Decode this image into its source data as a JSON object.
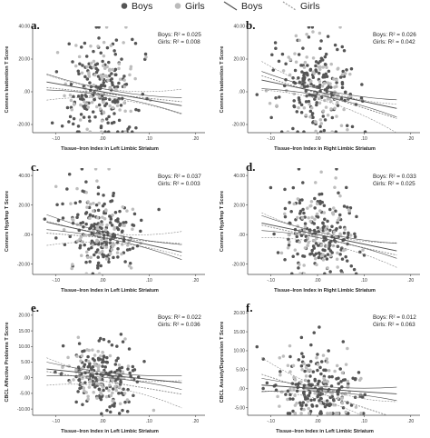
{
  "legend": {
    "items": [
      {
        "label": "Boys",
        "kind": "dot",
        "color": "#555555"
      },
      {
        "label": "Girls",
        "kind": "dot",
        "color": "#bbbbbb"
      },
      {
        "label": "Boys",
        "kind": "line",
        "color": "#555555"
      },
      {
        "label": "Girls",
        "kind": "dash",
        "color": "#999999"
      }
    ]
  },
  "colors": {
    "boys": "#555555",
    "girls": "#bdbdbd",
    "boys_line": "#4a4a4a",
    "girls_line": "#8a8a8a",
    "axis": "#444444"
  },
  "chart_data": [
    {
      "panel": "a.",
      "type": "scatter",
      "xlabel": "Tissue–Iron Index in Left Limbic Striatum",
      "ylabel": "Conners Inattention T Score",
      "xlim": [
        -0.15,
        0.22
      ],
      "ylim": [
        -25,
        40
      ],
      "xticks": [
        -0.1,
        0.0,
        0.1,
        0.2
      ],
      "xtick_labels": [
        "-.10",
        ".00",
        ".10",
        ".20"
      ],
      "yticks": [
        -20,
        0,
        20,
        40
      ],
      "ytick_labels": [
        "-20.00",
        ".00",
        "20.00",
        "40.00"
      ],
      "stats": [
        {
          "text": "Boys: R² = 0.025"
        },
        {
          "text": "Girls: R² = 0.008"
        }
      ],
      "fits": {
        "boys": {
          "slope": -50,
          "intercept": 0,
          "band": 2.2
        },
        "girls": {
          "slope": -30,
          "intercept": -1,
          "band": 3.5
        }
      },
      "y_center": 0,
      "y_spread": 13,
      "seed": 11
    },
    {
      "panel": "b.",
      "type": "scatter",
      "xlabel": "Tissue–Iron Index in Right Limbic Striatum",
      "ylabel": "Conners Inattention T Score",
      "xlim": [
        -0.15,
        0.22
      ],
      "ylim": [
        -25,
        40
      ],
      "xticks": [
        -0.1,
        0.0,
        0.1,
        0.2
      ],
      "xtick_labels": [
        "-.10",
        ".00",
        ".10",
        ".20"
      ],
      "yticks": [
        -20,
        0,
        20,
        40
      ],
      "ytick_labels": [
        "-20.00",
        ".00",
        "20.00",
        "40.00"
      ],
      "stats": [
        {
          "text": "Boys: R² = 0.026"
        },
        {
          "text": "Girls: R² = 0.042"
        }
      ],
      "fits": {
        "boys": {
          "slope": -60,
          "intercept": 0,
          "band": 2.4
        },
        "girls": {
          "slope": -90,
          "intercept": -1,
          "band": 4.0
        }
      },
      "y_center": 0,
      "y_spread": 13,
      "seed": 23
    },
    {
      "panel": "c.",
      "type": "scatter",
      "xlabel": "Tissue–Iron Index in Left Limbic Striatum",
      "ylabel": "Conners Hyp/Imp T Score",
      "xlim": [
        -0.15,
        0.22
      ],
      "ylim": [
        -27,
        45
      ],
      "xticks": [
        -0.1,
        0.0,
        0.1,
        0.2
      ],
      "xtick_labels": [
        "-.10",
        ".00",
        ".10",
        ".20"
      ],
      "yticks": [
        -20,
        0,
        20,
        40
      ],
      "ytick_labels": [
        "-20.00",
        ".00",
        "20.00",
        "40.00"
      ],
      "stats": [
        {
          "text": "Boys: R² = 0.037"
        },
        {
          "text": "Girls: R² = 0.003"
        }
      ],
      "fits": {
        "boys": {
          "slope": -70,
          "intercept": 0,
          "band": 2.3
        },
        "girls": {
          "slope": -25,
          "intercept": -2,
          "band": 3.8
        }
      },
      "y_center": 0,
      "y_spread": 13,
      "seed": 37
    },
    {
      "panel": "d.",
      "type": "scatter",
      "xlabel": "Tissue–Iron Index in Right Limbic Striatum",
      "ylabel": "Conners Hyp/Imp T Score",
      "xlim": [
        -0.15,
        0.22
      ],
      "ylim": [
        -27,
        45
      ],
      "xticks": [
        -0.1,
        0.0,
        0.1,
        0.2
      ],
      "xtick_labels": [
        "-.10",
        ".00",
        ".10",
        ".20"
      ],
      "yticks": [
        -20,
        0,
        20,
        40
      ],
      "ytick_labels": [
        "-20.00",
        ".00",
        "20.00",
        "40.00"
      ],
      "stats": [
        {
          "text": "Boys: R² = 0.033"
        },
        {
          "text": "Girls: R² = 0.025"
        }
      ],
      "fits": {
        "boys": {
          "slope": -65,
          "intercept": 0,
          "band": 2.3
        },
        "girls": {
          "slope": -70,
          "intercept": -2,
          "band": 3.8
        }
      },
      "y_center": 0,
      "y_spread": 13,
      "seed": 41
    },
    {
      "panel": "e.",
      "type": "scatter",
      "xlabel": "Tissue–Iron Index in Left Limbic Striatum",
      "ylabel": "CBCL Affective Problems T Score",
      "xlim": [
        -0.15,
        0.22
      ],
      "ylim": [
        -12,
        22
      ],
      "xticks": [
        -0.1,
        0.0,
        0.1,
        0.2
      ],
      "xtick_labels": [
        "-.10",
        ".00",
        ".10",
        ".20"
      ],
      "yticks": [
        -10,
        -5,
        0,
        5,
        10,
        15,
        20
      ],
      "ytick_labels": [
        "-10.00",
        "-5.00",
        ".00",
        "5.00",
        "10.00",
        "15.00",
        "20.00"
      ],
      "stats": [
        {
          "text": "Boys: R² = 0.022"
        },
        {
          "text": "Girls: R² = 0.036"
        }
      ],
      "fits": {
        "boys": {
          "slope": -15,
          "intercept": 1,
          "band": 1.0
        },
        "girls": {
          "slope": -25,
          "intercept": -1,
          "band": 2.0
        }
      },
      "y_center": 0,
      "y_spread": 5,
      "seed": 53
    },
    {
      "panel": "f.",
      "type": "scatter",
      "xlabel": "Tissue–Iron Index in Left Limbic Striatum",
      "ylabel": "CBCL Anxiety/Depression T Score",
      "xlim": [
        -0.15,
        0.22
      ],
      "ylim": [
        -7,
        21
      ],
      "xticks": [
        -0.1,
        0.0,
        0.1,
        0.2
      ],
      "xtick_labels": [
        "-.10",
        ".00",
        ".10",
        ".20"
      ],
      "yticks": [
        -5,
        0,
        5,
        10,
        15,
        20
      ],
      "ytick_labels": [
        "-5.00",
        ".00",
        "5.00",
        "10.00",
        "15.00",
        "20.00"
      ],
      "stats": [
        {
          "text": "Boys: R² = 0.012"
        },
        {
          "text": "Girls: R² = 0.063"
        }
      ],
      "fits": {
        "boys": {
          "slope": -8,
          "intercept": 0,
          "band": 0.8
        },
        "girls": {
          "slope": -40,
          "intercept": -1,
          "band": 2.0
        }
      },
      "y_center": -1,
      "y_spread": 4,
      "seed": 67
    }
  ]
}
